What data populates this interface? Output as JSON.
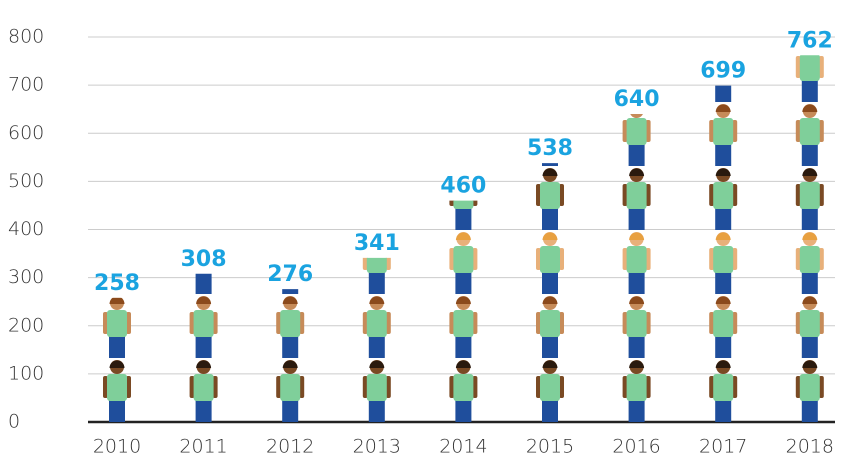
{
  "chart_data": {
    "type": "pictograph",
    "categories": [
      "2010",
      "2011",
      "2012",
      "2013",
      "2014",
      "2015",
      "2016",
      "2017",
      "2018"
    ],
    "values": [
      258,
      308,
      276,
      341,
      460,
      538,
      640,
      699,
      762
    ],
    "ylim": [
      0,
      800
    ],
    "yticks": [
      0,
      100,
      200,
      300,
      400,
      500,
      600,
      700,
      800
    ],
    "grid": true,
    "label_color": "#1aa3e0",
    "shirt_color": "#7fcf9a",
    "pants_color": "#1f4e9c"
  }
}
